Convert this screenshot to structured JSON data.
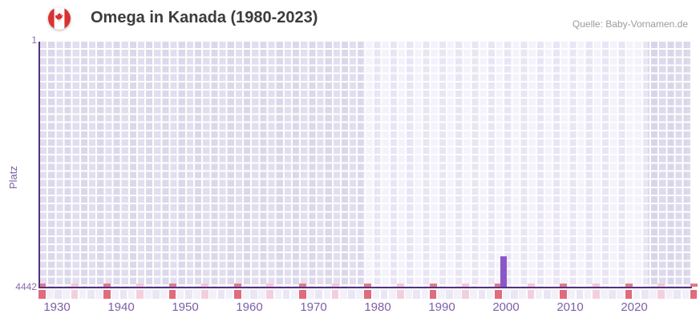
{
  "header": {
    "title": "Omega in Kanada (1980-2023)",
    "source": "Quelle: Baby-Vornamen.de"
  },
  "axes": {
    "y_label": "Platz",
    "y_tick_top": "1",
    "y_tick_bottom": "4442"
  },
  "chart_data": {
    "type": "bar",
    "title": "Omega in Kanada (1980-2023)",
    "ylabel": "Platz",
    "y_axis": {
      "top_rank": 1,
      "bottom_rank": 4442,
      "inverted": true
    },
    "x_ticks": [
      1930,
      1940,
      1950,
      1960,
      1970,
      1980,
      1990,
      2000,
      2010,
      2020
    ],
    "x_range_years": [
      1928,
      2028
    ],
    "highlight_band_years": [
      1978,
      2022
    ],
    "points": [
      {
        "year": 2000,
        "platz": 3894
      }
    ],
    "decade_marker_period_px": 81.3,
    "legend": "none",
    "grid": "on"
  },
  "colors": {
    "bar": "#8a57c8",
    "axis_line": "#53317f",
    "x_tick_label": "#7d5ea9",
    "y_tick_label": "#8a6cae",
    "y_axis_title": "#7a5fa5",
    "title": "#3c3c3c",
    "source": "#9b9b9b",
    "strip_red": "#e06b7c",
    "strip_pink": "#f3cfdd",
    "band_dark": "#e2deef",
    "band_light": "#f4f2fb",
    "flag_red": "#d83231"
  }
}
